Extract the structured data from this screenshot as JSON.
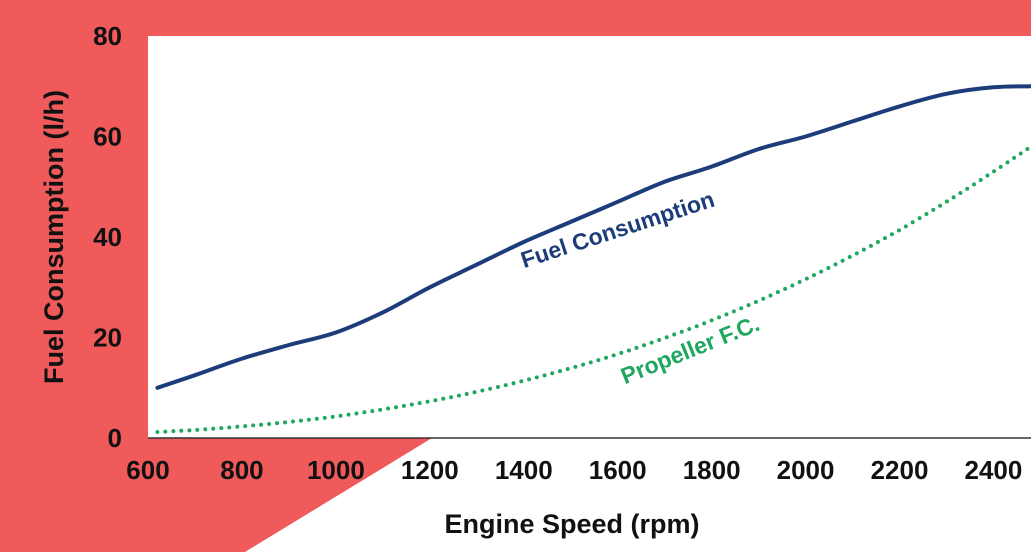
{
  "colors": {
    "background_accent": "#f05a5b",
    "plot_background": "#ffffff",
    "fuel_consumption": "#1d3c7a",
    "propeller_fc": "#1fa760"
  },
  "chart_data": {
    "type": "line",
    "title": "",
    "xlabel": "Engine Speed (rpm)",
    "ylabel": "Fuel Consumption (l/h)",
    "xlim": [
      600,
      2480
    ],
    "ylim": [
      0,
      80
    ],
    "x_ticks": [
      "600",
      "800",
      "1000",
      "1200",
      "1400",
      "1600",
      "1800",
      "2000",
      "2200",
      "2400"
    ],
    "y_ticks": [
      "0",
      "20",
      "40",
      "60",
      "80"
    ],
    "grid": false,
    "legend": "none (series labelled inline)",
    "series": [
      {
        "name": "Fuel Consumption",
        "style": "solid",
        "color": "#1d3c7a",
        "x": [
          620,
          700,
          800,
          900,
          1000,
          1100,
          1200,
          1300,
          1400,
          1500,
          1600,
          1700,
          1800,
          1900,
          2000,
          2100,
          2200,
          2300,
          2400,
          2480
        ],
        "y": [
          10,
          12.5,
          15.8,
          18.5,
          21,
          25,
          30,
          34.5,
          39,
          43,
          47,
          51,
          54,
          57.5,
          60,
          63,
          66,
          68.5,
          69.8,
          70
        ]
      },
      {
        "name": "Propeller F.C.",
        "style": "dotted",
        "color": "#1fa760",
        "x": [
          620,
          700,
          800,
          900,
          1000,
          1100,
          1200,
          1300,
          1400,
          1500,
          1600,
          1700,
          1800,
          1900,
          2000,
          2100,
          2200,
          2300,
          2400,
          2480
        ],
        "y": [
          1.2,
          1.6,
          2.3,
          3.2,
          4.3,
          5.7,
          7.3,
          9.2,
          11.4,
          13.9,
          16.7,
          19.9,
          23.4,
          27.3,
          31.6,
          36.3,
          41.4,
          47,
          53,
          58
        ]
      }
    ]
  }
}
